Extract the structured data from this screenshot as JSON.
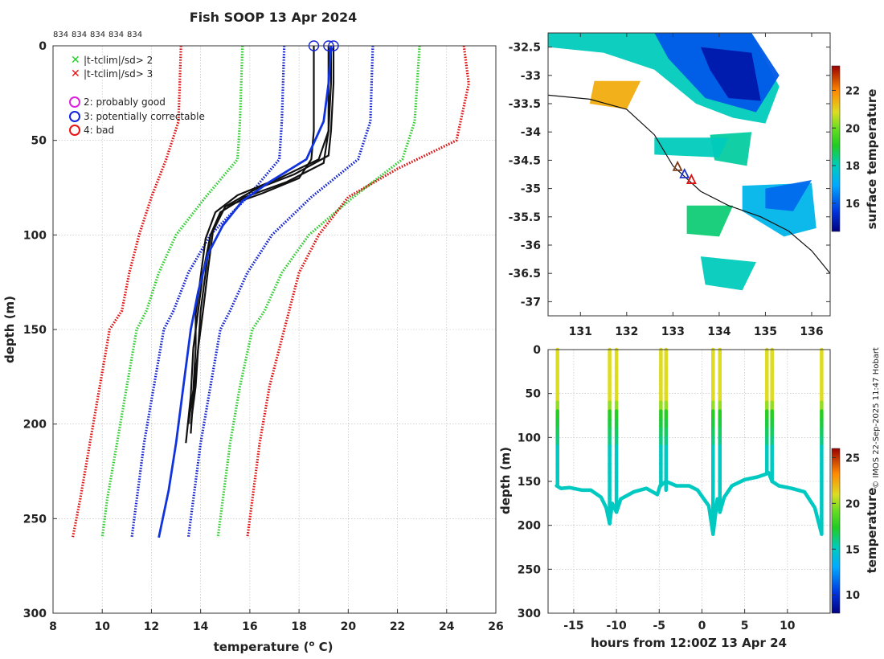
{
  "figure_title": "Fish SOOP 13 Apr 2024",
  "id_labels": [
    "834",
    "834",
    "834",
    "834",
    "834"
  ],
  "credit": "© IMOS 22-Sep-2025 11:47 Hobart",
  "chart_data": [
    {
      "id": "profiles",
      "type": "line",
      "xlabel": "temperature (",
      "xlabel_sup": "o",
      "xlabel_end": " C)",
      "ylabel": "depth (m)",
      "xlim": [
        8,
        26
      ],
      "ylim": [
        300,
        0
      ],
      "xticks": [
        8,
        10,
        12,
        14,
        16,
        18,
        20,
        22,
        24,
        26
      ],
      "yticks": [
        0,
        50,
        100,
        150,
        200,
        250,
        300
      ],
      "legend": [
        {
          "label": "|t-tclim|/sd> 2",
          "marker": "x",
          "color": "#22cc22"
        },
        {
          "label": "|t-tclim|/sd> 3",
          "marker": "x",
          "color": "#ee1111"
        },
        {
          "label": "2: probably good",
          "marker": "o",
          "color": "#dd22dd"
        },
        {
          "label": "3: potentially correctable",
          "marker": "o",
          "color": "#1122dd"
        },
        {
          "label": "4: bad",
          "marker": "o",
          "color": "#ee1111"
        }
      ],
      "envelopes": [
        {
          "name": "clim -3sd",
          "color": "#dd1111",
          "x": [
            13.2,
            13.1,
            12.6,
            12.0,
            11.5,
            11.1,
            10.8,
            10.3,
            9.9,
            9.5,
            9.1,
            8.8
          ],
          "depth": [
            0,
            40,
            60,
            80,
            100,
            120,
            140,
            150,
            180,
            210,
            240,
            260
          ]
        },
        {
          "name": "clim -2sd",
          "color": "#33cc33",
          "x": [
            15.7,
            15.6,
            15.5,
            14.2,
            13.0,
            12.3,
            11.8,
            11.4,
            11.0,
            10.6,
            10.2,
            10.0
          ],
          "depth": [
            0,
            40,
            60,
            80,
            100,
            120,
            140,
            150,
            180,
            210,
            240,
            260
          ]
        },
        {
          "name": "clim -1sd",
          "color": "#1122cc",
          "x": [
            17.4,
            17.3,
            17.2,
            15.9,
            14.4,
            13.5,
            12.9,
            12.5,
            12.1,
            11.7,
            11.4,
            11.2
          ],
          "depth": [
            0,
            40,
            60,
            80,
            100,
            120,
            140,
            150,
            180,
            210,
            240,
            260
          ]
        },
        {
          "name": "clim +1sd",
          "color": "#1122cc",
          "x": [
            21.0,
            20.9,
            20.4,
            18.5,
            16.9,
            15.9,
            15.2,
            14.8,
            14.4,
            14.0,
            13.7,
            13.5
          ],
          "depth": [
            0,
            40,
            60,
            80,
            100,
            120,
            140,
            150,
            180,
            210,
            240,
            260
          ]
        },
        {
          "name": "clim +2sd",
          "color": "#33cc33",
          "x": [
            22.9,
            22.7,
            22.2,
            20.2,
            18.4,
            17.3,
            16.6,
            16.1,
            15.6,
            15.2,
            14.9,
            14.7
          ],
          "depth": [
            0,
            40,
            60,
            80,
            100,
            120,
            140,
            150,
            180,
            210,
            240,
            260
          ]
        },
        {
          "name": "clim +3sd",
          "color": "#dd1111",
          "x": [
            24.7,
            24.9,
            24.4,
            22.0,
            20.0,
            18.8,
            18.0,
            17.4,
            16.8,
            16.4,
            16.1,
            15.9
          ],
          "depth": [
            0,
            20,
            50,
            65,
            80,
            100,
            120,
            150,
            180,
            210,
            240,
            260
          ]
        }
      ],
      "profiles": [
        {
          "color": "#111111",
          "x": [
            18.6,
            18.6,
            18.6,
            18.5,
            18.0,
            16.5,
            15.0,
            14.4,
            14.1,
            13.9,
            13.7,
            13.6,
            13.4
          ],
          "depth": [
            0,
            20,
            45,
            60,
            70,
            78,
            85,
            100,
            120,
            140,
            160,
            185,
            210
          ]
        },
        {
          "color": "#111111",
          "x": [
            19.2,
            19.2,
            19.2,
            19.0,
            17.5,
            15.8,
            14.8,
            14.4,
            14.2,
            14.0,
            13.9,
            13.7,
            13.6
          ],
          "depth": [
            0,
            20,
            45,
            62,
            72,
            80,
            88,
            100,
            120,
            140,
            160,
            185,
            205
          ]
        },
        {
          "color": "#111111",
          "x": [
            19.4,
            19.4,
            19.3,
            19.2,
            17.8,
            16.2,
            15.0,
            14.5,
            14.3,
            14.1,
            13.9,
            13.8,
            13.6
          ],
          "depth": [
            0,
            20,
            45,
            58,
            68,
            76,
            85,
            98,
            118,
            140,
            160,
            180,
            200
          ]
        },
        {
          "color": "#111111",
          "x": [
            19.3,
            19.3,
            19.2,
            18.8,
            17.2,
            15.5,
            14.6,
            14.2,
            14.0,
            13.8,
            13.8,
            13.7,
            13.5
          ],
          "depth": [
            0,
            20,
            45,
            60,
            70,
            79,
            88,
            102,
            122,
            142,
            160,
            182,
            200
          ]
        }
      ],
      "mean_profile": {
        "color": "#1133dd",
        "x": [
          19.3,
          19.2,
          19.0,
          18.3,
          16.8,
          15.7,
          14.9,
          14.3,
          13.9,
          13.6,
          13.3,
          13.0,
          12.7,
          12.3
        ],
        "depth": [
          0,
          20,
          40,
          60,
          72,
          82,
          95,
          110,
          130,
          150,
          180,
          210,
          235,
          260
        ]
      },
      "surface_markers": [
        {
          "x": 18.6,
          "depth": 0
        },
        {
          "x": 19.2,
          "depth": 0
        },
        {
          "x": 19.4,
          "depth": 0
        }
      ]
    },
    {
      "id": "sst_map",
      "type": "heatmap",
      "colorbar_label": "surface temperature",
      "colorbar_range": [
        14.5,
        23.3
      ],
      "colorbar_ticks": [
        16,
        18,
        20,
        22
      ],
      "xlim": [
        130.3,
        136.4
      ],
      "ylim": [
        -37.25,
        -32.25
      ],
      "xticks": [
        131,
        132,
        133,
        134,
        135,
        136
      ],
      "yticks": [
        -32.5,
        -33,
        -33.5,
        -34,
        -34.5,
        -35,
        -35.5,
        -36,
        -36.5,
        -37
      ],
      "ytick_labels": [
        "-32.5",
        "-33",
        "-33.5",
        "-34",
        "-34.5",
        "-35",
        "-35.5",
        "-36",
        "-36.5",
        "-37"
      ],
      "coast": {
        "lon": [
          130.3,
          131.2,
          132.0,
          132.6,
          133.0,
          133.6,
          134.2,
          134.9,
          135.5,
          136.0,
          136.4
        ],
        "lat": [
          -33.35,
          -33.42,
          -33.6,
          -34.05,
          -34.6,
          -35.05,
          -35.3,
          -35.5,
          -35.75,
          -36.1,
          -36.5
        ]
      },
      "patches": [
        {
          "lon": [
            130.3,
            133.4,
            134.7,
            135.3,
            135.0,
            134.3,
            133.5,
            132.6,
            131.5,
            130.3
          ],
          "lat": [
            -32.25,
            -32.25,
            -32.25,
            -33.2,
            -33.85,
            -33.75,
            -33.5,
            -32.9,
            -32.6,
            -32.5
          ],
          "temp": 18.0
        },
        {
          "lon": [
            132.6,
            134.7,
            135.3,
            134.8,
            133.7,
            132.9
          ],
          "lat": [
            -32.25,
            -32.25,
            -33.0,
            -33.65,
            -33.4,
            -32.7
          ],
          "temp": 16.0
        },
        {
          "lon": [
            133.6,
            134.7,
            134.9,
            134.2,
            133.8
          ],
          "lat": [
            -32.5,
            -32.6,
            -33.45,
            -33.4,
            -32.9
          ],
          "temp": 15.0
        },
        {
          "lon": [
            134.5,
            136.0,
            136.1,
            135.4,
            134.5
          ],
          "lat": [
            -34.95,
            -34.9,
            -35.7,
            -35.85,
            -35.4
          ],
          "temp": 17.3
        },
        {
          "lon": [
            135.0,
            136.0,
            135.6,
            135.0
          ],
          "lat": [
            -35.0,
            -34.85,
            -35.4,
            -35.35
          ],
          "temp": 16.2
        },
        {
          "lon": [
            133.8,
            134.7,
            134.6,
            133.9
          ],
          "lat": [
            -34.05,
            -34.0,
            -34.6,
            -34.5
          ],
          "temp": 18.2
        },
        {
          "lon": [
            133.3,
            134.3,
            134.0,
            133.3
          ],
          "lat": [
            -35.3,
            -35.3,
            -35.85,
            -35.8
          ],
          "temp": 18.5
        },
        {
          "lon": [
            133.6,
            134.8,
            134.5,
            133.7
          ],
          "lat": [
            -36.2,
            -36.3,
            -36.8,
            -36.7
          ],
          "temp": 18.0
        },
        {
          "lon": [
            131.3,
            132.3,
            132.0,
            131.2
          ],
          "lat": [
            -33.1,
            -33.1,
            -33.6,
            -33.5
          ],
          "temp": 21.5
        },
        {
          "lon": [
            132.6,
            134.2,
            134.0,
            132.6
          ],
          "lat": [
            -34.1,
            -34.1,
            -34.45,
            -34.4
          ],
          "temp": 18.0
        }
      ],
      "track_markers": [
        {
          "lon": 133.1,
          "lat": -34.62,
          "color": "#7a3b1a"
        },
        {
          "lon": 133.25,
          "lat": -34.75,
          "color": "#2233cc"
        },
        {
          "lon": 133.4,
          "lat": -34.85,
          "color": "#dd1111"
        }
      ]
    },
    {
      "id": "section",
      "type": "scatter",
      "xlabel": "hours from 12:00Z 13 Apr 24",
      "ylabel": "depth (m)",
      "colorbar_label": "temperature",
      "colorbar_range": [
        8.0,
        26.0
      ],
      "colorbar_ticks": [
        10,
        15,
        20,
        25
      ],
      "xlim": [
        -18,
        15
      ],
      "ylim": [
        300,
        0
      ],
      "xticks": [
        -15,
        -10,
        -5,
        0,
        5,
        10
      ],
      "xtick_labels": [
        "-15",
        "-10",
        "-5",
        "0",
        "5",
        "10"
      ],
      "yticks": [
        0,
        50,
        100,
        150,
        200,
        250,
        300
      ],
      "casts": [
        {
          "time": -16.9,
          "max_depth": 155
        },
        {
          "time": -10.8,
          "max_depth": 198
        },
        {
          "time": -10.0,
          "max_depth": 185
        },
        {
          "time": -4.8,
          "max_depth": 155
        },
        {
          "time": -4.2,
          "max_depth": 160
        },
        {
          "time": 1.3,
          "max_depth": 210
        },
        {
          "time": 2.1,
          "max_depth": 185
        },
        {
          "time": 7.6,
          "max_depth": 140
        },
        {
          "time": 8.2,
          "max_depth": 150
        },
        {
          "time": 14.0,
          "max_depth": 210
        }
      ],
      "bottom_trace": {
        "time": [
          -17.0,
          -16.5,
          -15.5,
          -14.0,
          -13.0,
          -11.8,
          -11.2,
          -10.8,
          -10.5,
          -10.0,
          -9.5,
          -8.0,
          -6.5,
          -5.2,
          -4.9,
          -4.2,
          -3.0,
          -1.5,
          -0.5,
          0.8,
          1.3,
          1.8,
          2.1,
          2.6,
          3.5,
          5.0,
          6.5,
          7.4,
          7.8,
          8.2,
          9.0,
          10.5,
          12.0,
          13.2,
          14.0
        ],
        "depth": [
          155,
          158,
          157,
          160,
          160,
          168,
          180,
          198,
          175,
          185,
          170,
          162,
          158,
          165,
          155,
          150,
          155,
          155,
          160,
          178,
          210,
          170,
          185,
          168,
          155,
          148,
          145,
          142,
          140,
          150,
          155,
          158,
          162,
          180,
          210
        ]
      }
    }
  ]
}
